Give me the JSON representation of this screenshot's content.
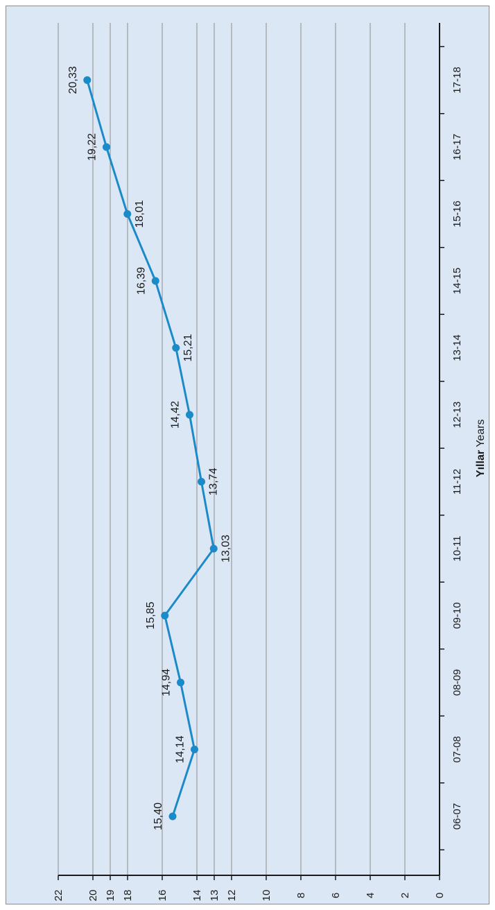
{
  "chart_data": {
    "type": "line",
    "orientation": "rotated-90-ccw",
    "xlabel_bold": "Yıllar",
    "xlabel_rest": "Years",
    "ylabel": "",
    "categories": [
      "06-07",
      "07-08",
      "08-09",
      "09-10",
      "10-11",
      "11-12",
      "12-13",
      "13-14",
      "14-15",
      "15-16",
      "16-17",
      "17-18"
    ],
    "series": [
      {
        "values": [
          15.4,
          14.14,
          14.94,
          15.85,
          13.03,
          13.74,
          14.42,
          15.21,
          16.39,
          18.01,
          19.22,
          20.33
        ],
        "labels": [
          "15,40",
          "14,14",
          "14,94",
          "15,85",
          "13,03",
          "13,74",
          "14,42",
          "15,21",
          "16,39",
          "18,01",
          "19,22",
          "20,33"
        ],
        "color": "#1a8ac8"
      }
    ],
    "y_ticks": [
      {
        "value": 0,
        "label": "0"
      },
      {
        "value": 2,
        "label": "2"
      },
      {
        "value": 4,
        "label": "4"
      },
      {
        "value": 6,
        "label": "6"
      },
      {
        "value": 8,
        "label": "8"
      },
      {
        "value": 10,
        "label": "10"
      },
      {
        "value": 12,
        "label": "12"
      },
      {
        "value": 13,
        "label": "13"
      },
      {
        "value": 14,
        "label": "14"
      },
      {
        "value": 16,
        "label": "16"
      },
      {
        "value": 18,
        "label": "18"
      },
      {
        "value": 19,
        "label": "19"
      },
      {
        "value": 20,
        "label": "20"
      },
      {
        "value": 22,
        "label": "22"
      }
    ],
    "grid": true,
    "legend": "none"
  }
}
